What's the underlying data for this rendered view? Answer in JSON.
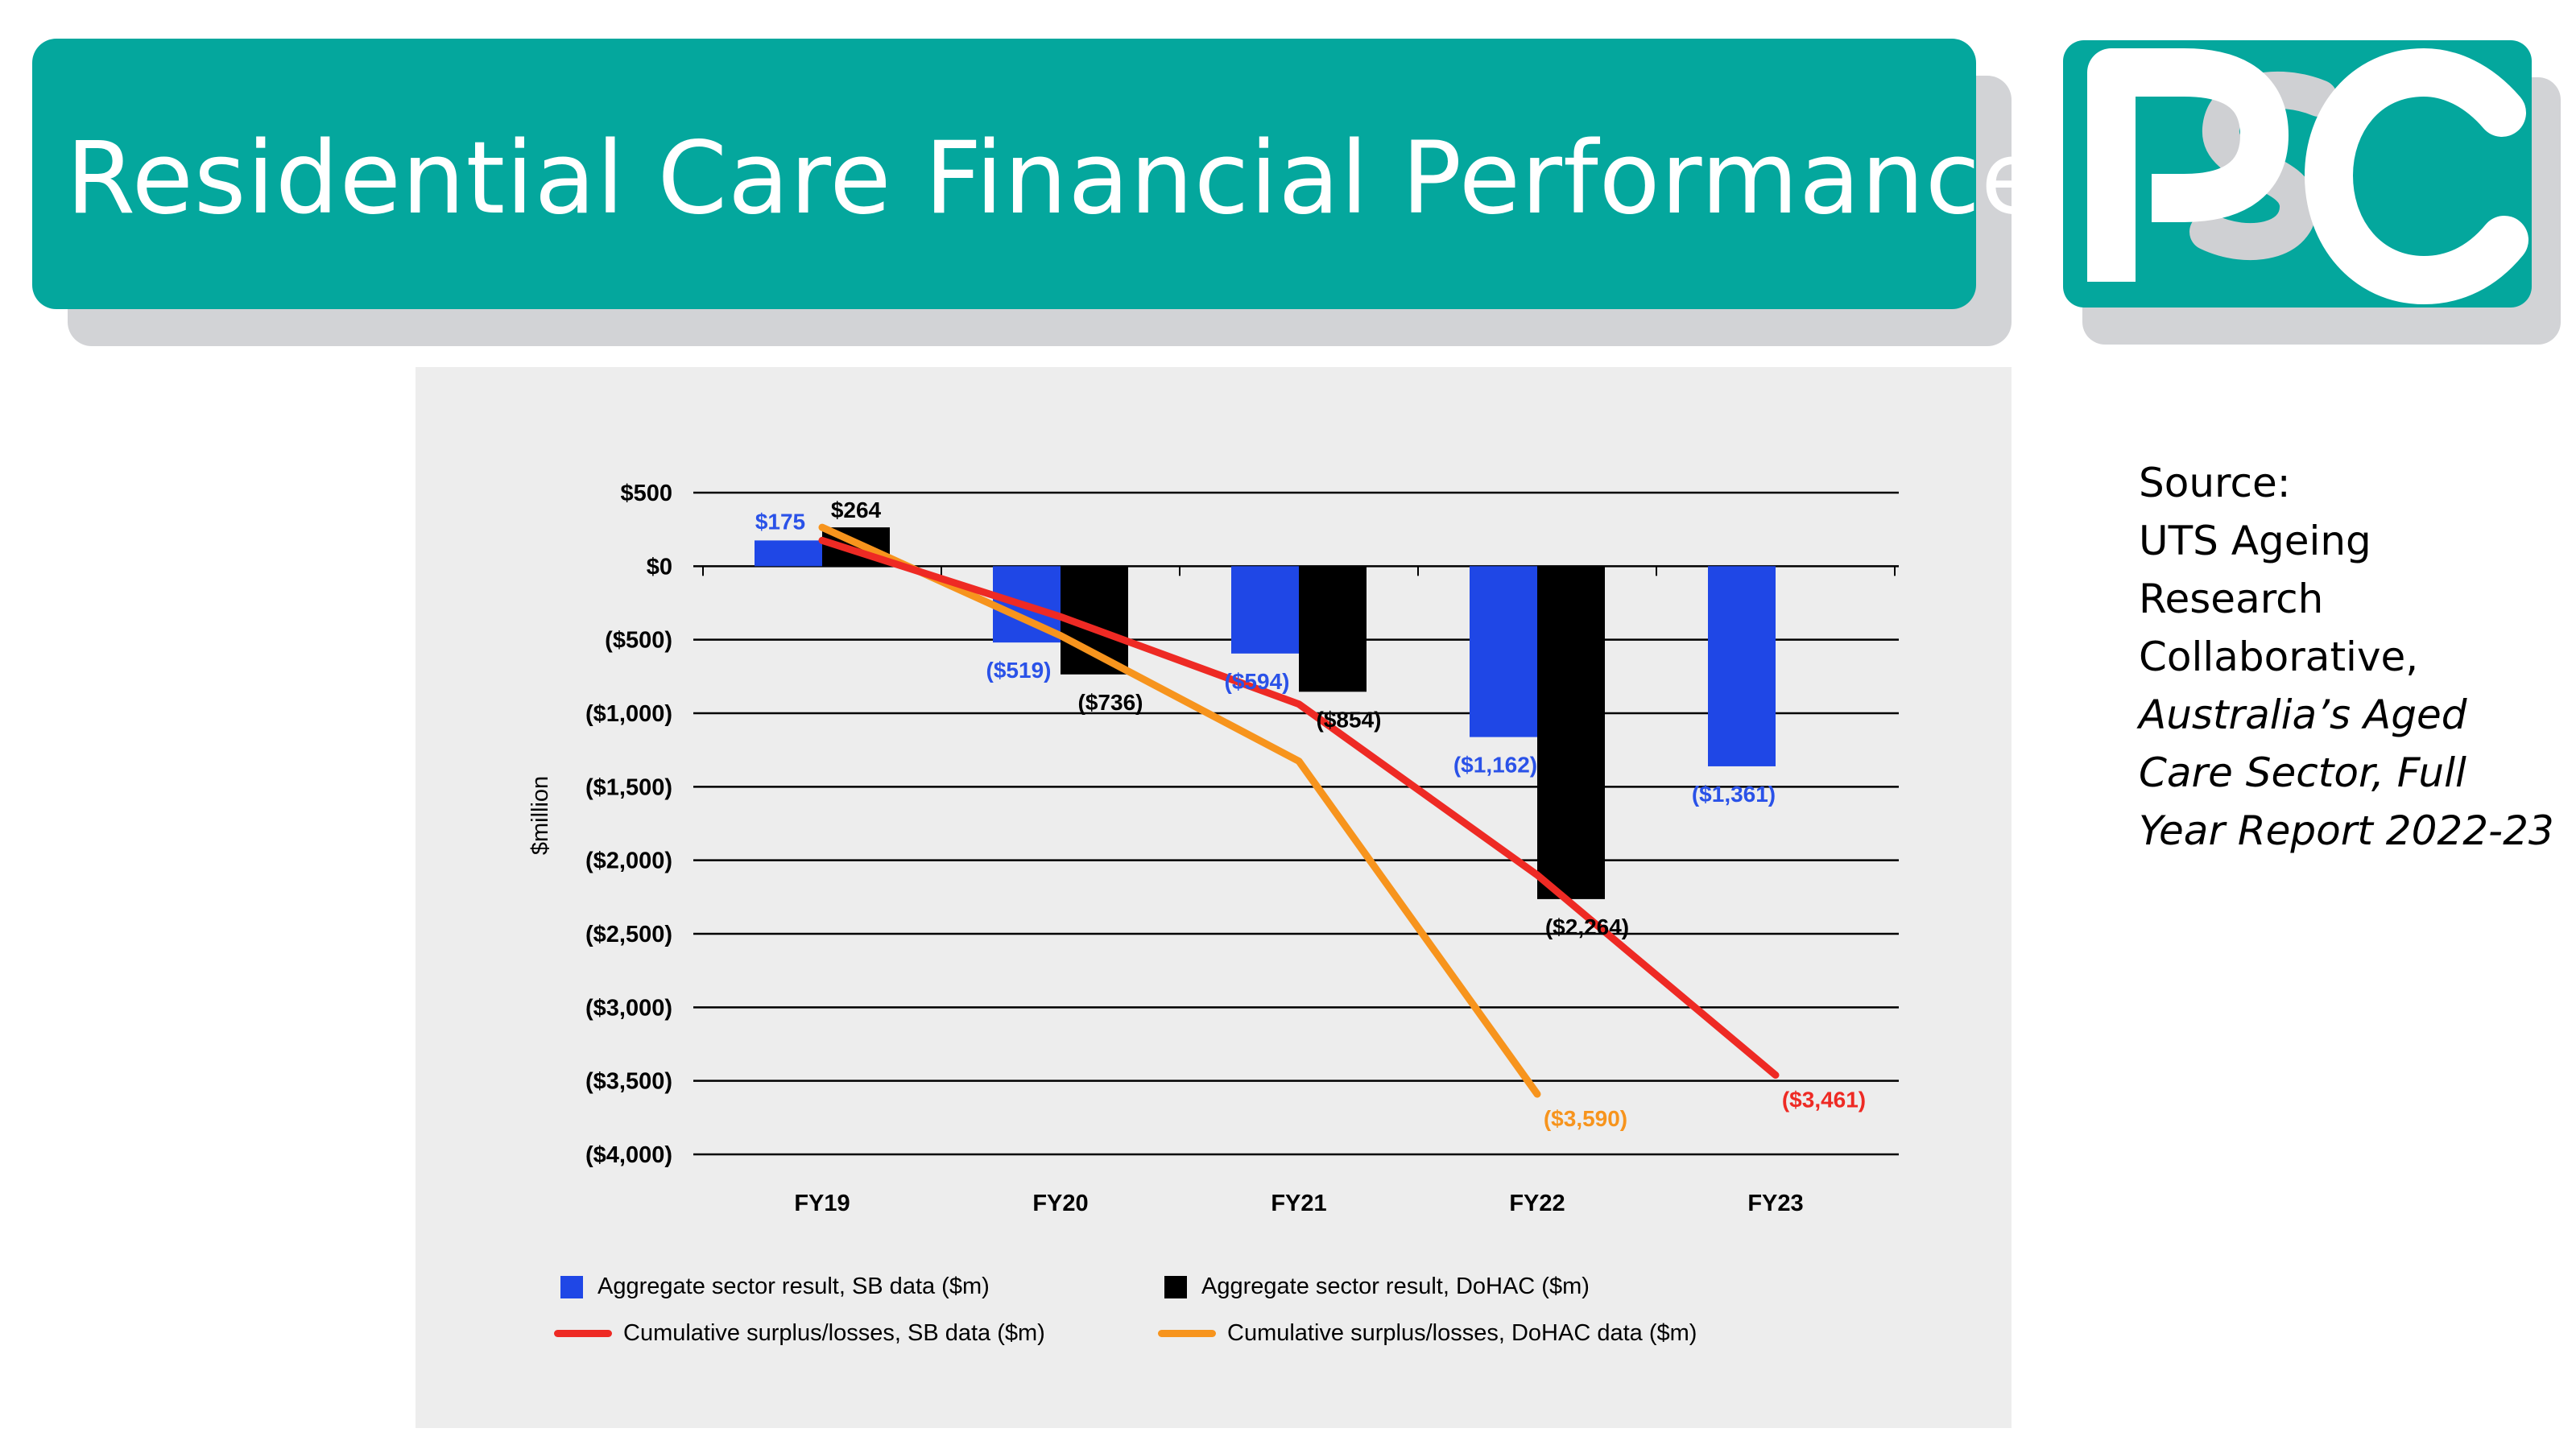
{
  "slide": {
    "title": "Residential Care Financial Performance",
    "logo_text": "PSC",
    "source_lines": [
      "Source:",
      "UTS Ageing Research Collaborative,"
    ],
    "source_italic": "Australia’s Aged Care Sector, Full Year Report 2022-23",
    "colors": {
      "teal": "#04a79d",
      "shadow": "#d2d3d6"
    }
  },
  "chart_data": {
    "type": "bar",
    "ylabel": "$million",
    "ylim": [
      -4000,
      500
    ],
    "yticks": [
      500,
      0,
      -500,
      -1000,
      -1500,
      -2000,
      -2500,
      -3000,
      -3500,
      -4000
    ],
    "ytick_labels": [
      "$500",
      "$0",
      "($500)",
      "($1,000)",
      "($1,500)",
      "($2,000)",
      "($2,500)",
      "($3,000)",
      "($3,500)",
      "($4,000)"
    ],
    "categories": [
      "FY19",
      "FY20",
      "FY21",
      "FY22",
      "FY23"
    ],
    "bar_series": [
      {
        "name": "Aggregate sector result, SB data ($m)",
        "color": "#1f47e6",
        "label_color": "#2a52e8",
        "values": [
          175,
          -519,
          -594,
          -1162,
          -1361
        ],
        "labels": [
          "$175",
          "($519)",
          "($594)",
          "($1,162)",
          "($1,361)"
        ]
      },
      {
        "name": "Aggregate sector result, DoHAC ($m)",
        "color": "#000000",
        "label_color": "#000000",
        "values": [
          264,
          -736,
          -854,
          -2264,
          null
        ],
        "labels": [
          "$264",
          "($736)",
          "($854)",
          "($2,264)",
          ""
        ]
      }
    ],
    "line_series": [
      {
        "name": "Cumulative surplus/losses, SB data ($m)",
        "color": "#ee2a24",
        "x": [
          0,
          1,
          2,
          3,
          4
        ],
        "values": [
          175,
          -344,
          -938,
          -2100,
          -3461
        ],
        "end_label": "($3,461)"
      },
      {
        "name": "Cumulative surplus/losses, DoHAC data ($m)",
        "color": "#f7941d",
        "x": [
          0,
          1,
          2,
          3
        ],
        "values": [
          264,
          -472,
          -1326,
          -3590
        ],
        "end_label": "($3,590)"
      }
    ],
    "legend": [
      {
        "label": "Aggregate sector result, SB data ($m)",
        "kind": "box",
        "color": "#1f47e6"
      },
      {
        "label": "Aggregate sector result, DoHAC ($m)",
        "kind": "box",
        "color": "#000000"
      },
      {
        "label": "Cumulative surplus/losses, SB data ($m)",
        "kind": "line",
        "color": "#ee2a24"
      },
      {
        "label": "Cumulative surplus/losses, DoHAC data ($m)",
        "kind": "line",
        "color": "#f7941d"
      }
    ]
  }
}
